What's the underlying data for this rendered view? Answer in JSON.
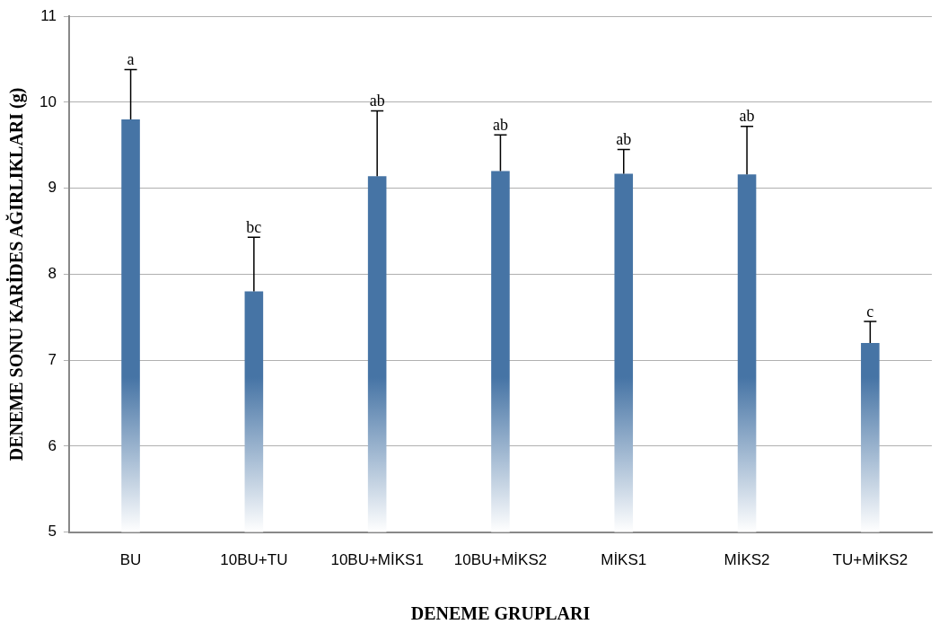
{
  "chart_data": {
    "type": "bar",
    "xlabel": "DENEME GRUPLARI",
    "ylabel": "DENEME SONU KARİDES AĞIRLIKLARI (g)",
    "categories": [
      "BU",
      "10BU+TU",
      "10BU+MİKS1",
      "10BU+MİKS2",
      "MİKS1",
      "MİKS2",
      "TU+MİKS2"
    ],
    "values": [
      9.8,
      7.8,
      9.14,
      9.2,
      9.17,
      9.16,
      7.2
    ],
    "errors": [
      [
        9.8,
        10.38
      ],
      [
        7.8,
        8.43
      ],
      [
        9.14,
        9.9
      ],
      [
        9.2,
        9.62
      ],
      [
        9.17,
        9.45
      ],
      [
        9.16,
        9.72
      ],
      [
        7.2,
        7.45
      ]
    ],
    "color": "#4674a5",
    "ylim": [
      5,
      11
    ],
    "yticks": [
      5,
      6,
      7,
      8,
      9,
      10,
      11
    ],
    "grid": "y",
    "legend": false,
    "annotations": [
      {
        "text": "a",
        "x": "BU",
        "y": 10.38
      },
      {
        "text": "bc",
        "x": "10BU+TU",
        "y": 8.43
      },
      {
        "text": "ab",
        "x": "10BU+MİKS1",
        "y": 9.9
      },
      {
        "text": "ab",
        "x": "10BU+MİKS2",
        "y": 9.62
      },
      {
        "text": "ab",
        "x": "MİKS1",
        "y": 9.45
      },
      {
        "text": "ab",
        "x": "MİKS2",
        "y": 9.72
      },
      {
        "text": "c",
        "x": "TU+MİKS2",
        "y": 7.45
      }
    ]
  }
}
